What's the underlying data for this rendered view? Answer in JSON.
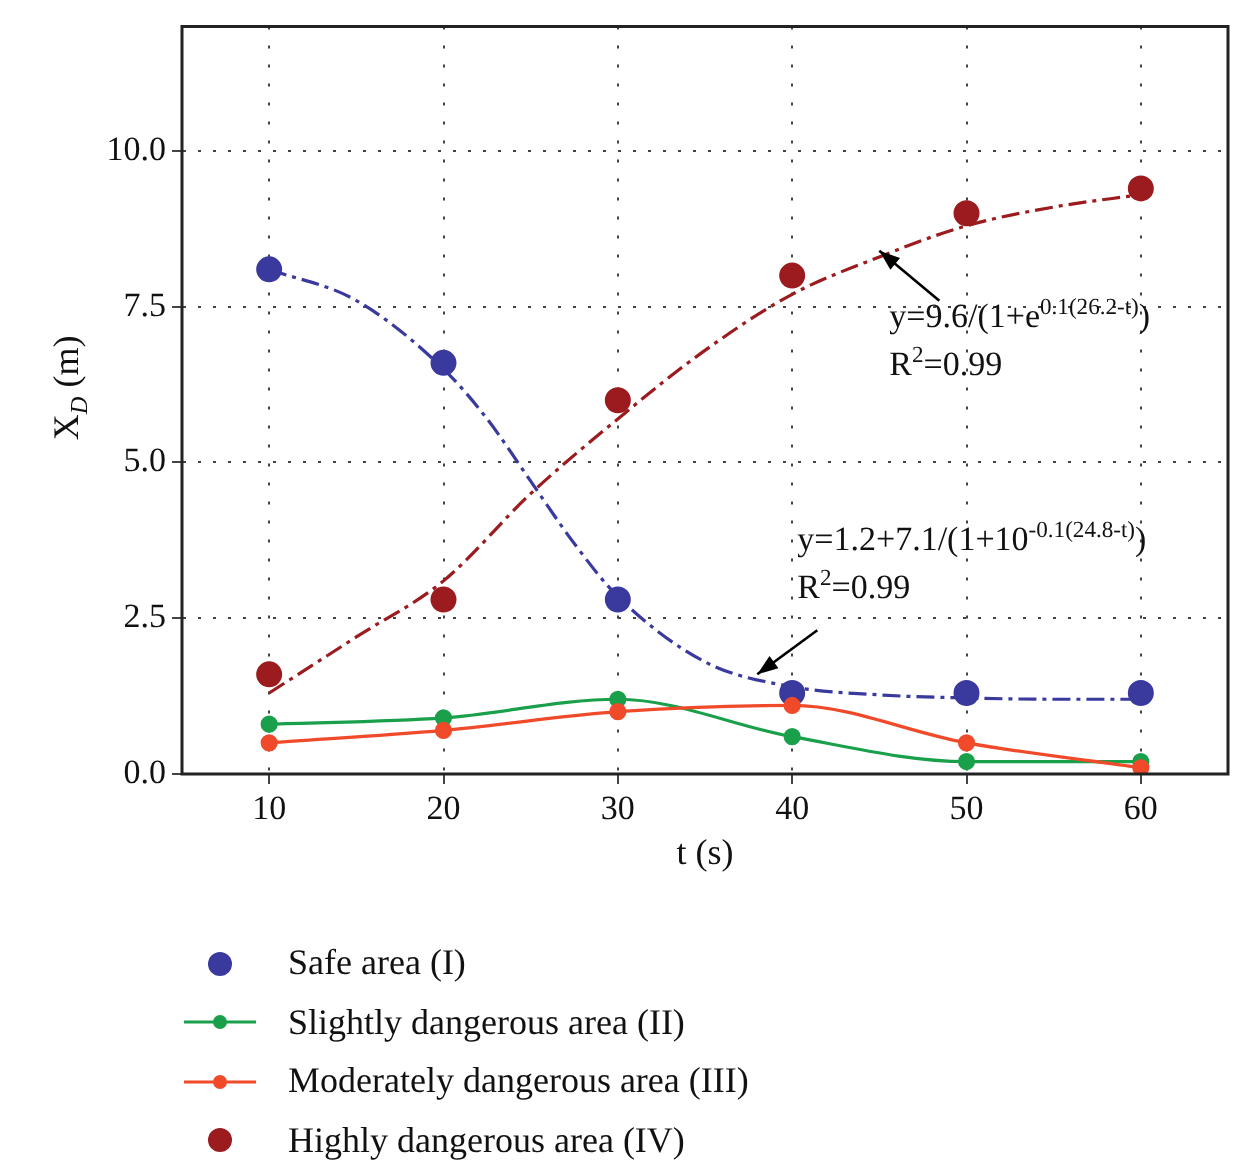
{
  "chart_data": {
    "type": "line",
    "xlabel": "t (s)",
    "ylabel": "X$_{D}$ (m)",
    "xlim": [
      5,
      65
    ],
    "xticks": [
      10,
      20,
      30,
      40,
      50,
      60
    ],
    "ylim": [
      0,
      12
    ],
    "yticks": [
      {
        "value": 0,
        "label": "0.0"
      },
      2.5,
      {
        "value": 5,
        "label": "5.0"
      },
      7.5,
      {
        "value": 10,
        "label": "10.0"
      }
    ],
    "grid": true,
    "legend": "bottom",
    "marker": "circle",
    "series": [
      {
        "name": "Safe area (I)",
        "type": "scatter",
        "color": "#3a3a9e",
        "x": [
          10,
          20,
          30,
          40,
          50,
          60
        ],
        "values": [
          8.1,
          6.6,
          2.8,
          1.3,
          1.3,
          1.3
        ]
      },
      {
        "name": "Slightly dangerous area (II)",
        "type": "line",
        "color": "#1aa04a",
        "x": [
          10,
          20,
          30,
          40,
          50,
          60
        ],
        "values": [
          0.8,
          0.9,
          1.2,
          0.6,
          0.2,
          0.2
        ]
      },
      {
        "name": "Moderately dangerous area (III)",
        "type": "line",
        "color": "#f04a2a",
        "x": [
          10,
          20,
          30,
          40,
          50,
          60
        ],
        "values": [
          0.5,
          0.7,
          1.0,
          1.1,
          0.5,
          0.1
        ]
      },
      {
        "name": "Highly dangerous area (IV)",
        "type": "scatter",
        "color": "#9b1b1e",
        "x": [
          10,
          20,
          30,
          40,
          50,
          60
        ],
        "values": [
          1.6,
          2.8,
          6.0,
          8.0,
          9.0,
          9.4
        ]
      },
      {
        "type": "line",
        "color": "#3a3a9e",
        "marker": "none",
        "line_style": "dashed",
        "x": [
          10,
          15,
          20,
          22.5,
          25,
          27.5,
          30,
          35,
          40,
          45,
          50,
          55,
          60
        ],
        "values": [
          8.1,
          7.6,
          6.5,
          5.7,
          4.7,
          3.7,
          2.85,
          1.8,
          1.4,
          1.27,
          1.22,
          1.2,
          1.2
        ]
      },
      {
        "type": "line",
        "color": "#9b1b1e",
        "marker": "none",
        "line_style": "dashed",
        "x": [
          10,
          15,
          20,
          25,
          30,
          35,
          40,
          45,
          50,
          55,
          60
        ],
        "values": [
          1.3,
          2.2,
          3.1,
          4.5,
          5.7,
          6.8,
          7.7,
          8.3,
          8.8,
          9.1,
          9.3
        ]
      }
    ],
    "annotations": [
      {
        "text": "y=9.6/(1+e$^{0.1(26.2-t)}$)",
        "x": 45,
        "y": 8.4
      },
      "R$^{2}$=0.99",
      "y=1.2+7.1/(1+10$^{-0.1(24.8-t)}$)",
      {
        "text": "R$^{2}$=0.99",
        "x": 38,
        "y": 1.6
      }
    ]
  }
}
